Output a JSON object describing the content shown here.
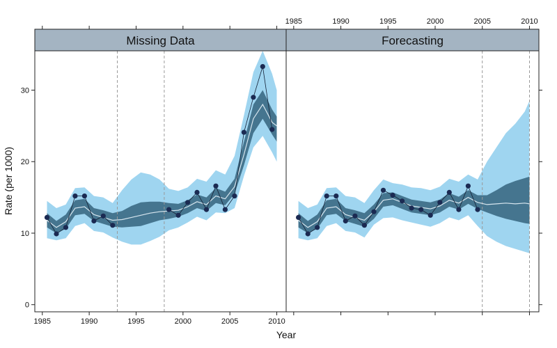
{
  "chart_data": {
    "type": "line",
    "xlabel": "Year",
    "ylabel": "Rate (per 1000)",
    "ylim": [
      -1,
      35.5
    ],
    "xlim": [
      1984.2,
      2011
    ],
    "y_ticks": [
      0,
      10,
      20,
      30
    ],
    "x_ticks": [
      1985,
      1990,
      1995,
      2000,
      2005,
      2010
    ],
    "colors": {
      "strip": "#a4b4c2",
      "outer_band": "#9fd5f0",
      "inner_band": "#45758f",
      "median": "#d7e6ef",
      "points": "#1b2a52",
      "ref_line": "#999999"
    },
    "panels": [
      {
        "title": "Missing Data",
        "ref_lines": [
          1993,
          1998
        ],
        "observed": {
          "x": [
            1985.5,
            1986.5,
            1987.5,
            1988.5,
            1989.5,
            1990.5,
            1991.5,
            1992.5,
            1998.5,
            1999.5,
            2000.5,
            2001.5,
            2002.5,
            2003.5,
            2004.5,
            2005.5,
            2006.5,
            2007.5,
            2008.5,
            2009.5
          ],
          "y": [
            12.2,
            9.9,
            10.8,
            15.2,
            15.2,
            11.7,
            12.4,
            11.1,
            13.3,
            12.5,
            14.3,
            15.7,
            13.3,
            16.6,
            13.3,
            15.2,
            24.1,
            29.0,
            33.3,
            24.5
          ]
        },
        "fit": {
          "x": [
            1985.5,
            1986.5,
            1987.5,
            1988.5,
            1989.5,
            1990.5,
            1991.5,
            1992.5,
            1993.5,
            1994.5,
            1995.5,
            1996.5,
            1997.5,
            1998.5,
            1999.5,
            2000.5,
            2001.5,
            2002.5,
            2003.5,
            2004.5,
            2005.5,
            2006.5,
            2007.5,
            2008.5,
            2009.5,
            2010.0
          ],
          "median": [
            11.8,
            10.8,
            11.6,
            13.5,
            13.7,
            12.6,
            12.2,
            11.8,
            11.9,
            12.2,
            12.5,
            12.8,
            13.0,
            13.1,
            13.2,
            13.7,
            14.4,
            14.0,
            15.2,
            14.8,
            16.5,
            21.0,
            26.0,
            28.0,
            25.5,
            25.0
          ],
          "inner_lo": [
            10.8,
            10.0,
            10.6,
            12.5,
            12.7,
            11.7,
            11.3,
            10.9,
            10.8,
            10.9,
            11.0,
            11.4,
            11.8,
            12.0,
            12.3,
            12.8,
            13.5,
            13.1,
            14.2,
            13.9,
            15.5,
            19.5,
            24.0,
            26.0,
            23.8,
            22.8
          ],
          "inner_hi": [
            12.8,
            11.7,
            12.6,
            14.6,
            14.8,
            13.5,
            13.2,
            12.8,
            13.1,
            13.8,
            14.3,
            14.4,
            14.4,
            14.2,
            14.1,
            14.6,
            15.4,
            15.0,
            16.3,
            15.8,
            17.6,
            22.8,
            28.0,
            30.0,
            27.3,
            26.3
          ],
          "outer_lo": [
            9.3,
            9.0,
            9.3,
            11.0,
            11.4,
            10.3,
            10.1,
            9.4,
            8.8,
            8.4,
            8.4,
            8.9,
            9.5,
            10.4,
            10.8,
            11.5,
            12.3,
            11.8,
            12.9,
            12.8,
            13.5,
            18.0,
            22.0,
            23.6,
            21.3,
            20.0
          ],
          "outer_hi": [
            14.5,
            13.5,
            14.0,
            16.3,
            16.4,
            15.2,
            15.0,
            14.2,
            16.0,
            17.5,
            18.5,
            18.2,
            17.5,
            16.2,
            15.9,
            16.4,
            17.6,
            17.2,
            18.8,
            18.2,
            20.8,
            26.5,
            32.5,
            35.5,
            32.3,
            30.0
          ]
        }
      },
      {
        "title": "Forecasting",
        "ref_lines": [
          2005,
          2010
        ],
        "observed": {
          "x": [
            1985.5,
            1986.5,
            1987.5,
            1988.5,
            1989.5,
            1990.5,
            1991.5,
            1992.5,
            1993.5,
            1994.5,
            1995.5,
            1996.5,
            1997.5,
            1998.5,
            1999.5,
            2000.5,
            2001.5,
            2002.5,
            2003.5,
            2004.5
          ],
          "y": [
            12.2,
            9.9,
            10.8,
            15.2,
            15.2,
            11.7,
            12.4,
            11.1,
            13.0,
            16.0,
            15.3,
            14.5,
            13.5,
            13.3,
            12.5,
            14.3,
            15.7,
            13.3,
            16.6,
            13.3
          ]
        },
        "fit": {
          "x": [
            1985.5,
            1986.5,
            1987.5,
            1988.5,
            1989.5,
            1990.5,
            1991.5,
            1992.5,
            1993.5,
            1994.5,
            1995.5,
            1996.5,
            1997.5,
            1998.5,
            1999.5,
            2000.5,
            2001.5,
            2002.5,
            2003.5,
            2004.5,
            2005.5,
            2006.5,
            2007.5,
            2008.5,
            2009.5,
            2010.0
          ],
          "median": [
            11.8,
            10.8,
            11.6,
            13.5,
            13.7,
            12.6,
            12.2,
            11.8,
            13.0,
            14.6,
            14.8,
            14.3,
            13.8,
            13.6,
            13.4,
            13.8,
            14.6,
            14.2,
            15.0,
            14.3,
            14.0,
            14.1,
            14.2,
            14.1,
            14.2,
            14.1
          ],
          "inner_lo": [
            10.8,
            10.0,
            10.6,
            12.5,
            12.7,
            11.7,
            11.3,
            10.9,
            12.0,
            13.7,
            13.9,
            13.4,
            12.9,
            12.7,
            12.5,
            12.9,
            13.7,
            13.3,
            14.1,
            13.4,
            12.9,
            12.4,
            12.0,
            11.7,
            11.4,
            11.3
          ],
          "inner_hi": [
            12.8,
            11.7,
            12.6,
            14.6,
            14.8,
            13.5,
            13.2,
            12.8,
            14.0,
            15.6,
            15.7,
            15.2,
            14.7,
            14.5,
            14.3,
            14.7,
            15.6,
            15.1,
            16.0,
            15.3,
            15.3,
            16.0,
            16.8,
            17.3,
            17.7,
            17.9
          ],
          "outer_lo": [
            9.3,
            9.0,
            9.3,
            11.0,
            11.4,
            10.3,
            10.1,
            9.4,
            11.2,
            12.1,
            12.2,
            11.8,
            11.5,
            11.2,
            10.9,
            11.4,
            12.2,
            11.8,
            12.5,
            11.0,
            9.6,
            8.8,
            8.2,
            7.8,
            7.4,
            7.2
          ],
          "outer_hi": [
            14.5,
            13.5,
            14.0,
            16.3,
            16.4,
            15.2,
            15.0,
            14.2,
            16.0,
            17.5,
            17.0,
            16.8,
            16.4,
            16.3,
            16.0,
            16.5,
            17.6,
            17.2,
            18.2,
            17.5,
            20.0,
            22.0,
            24.0,
            25.3,
            27.0,
            28.5
          ]
        }
      }
    ]
  }
}
